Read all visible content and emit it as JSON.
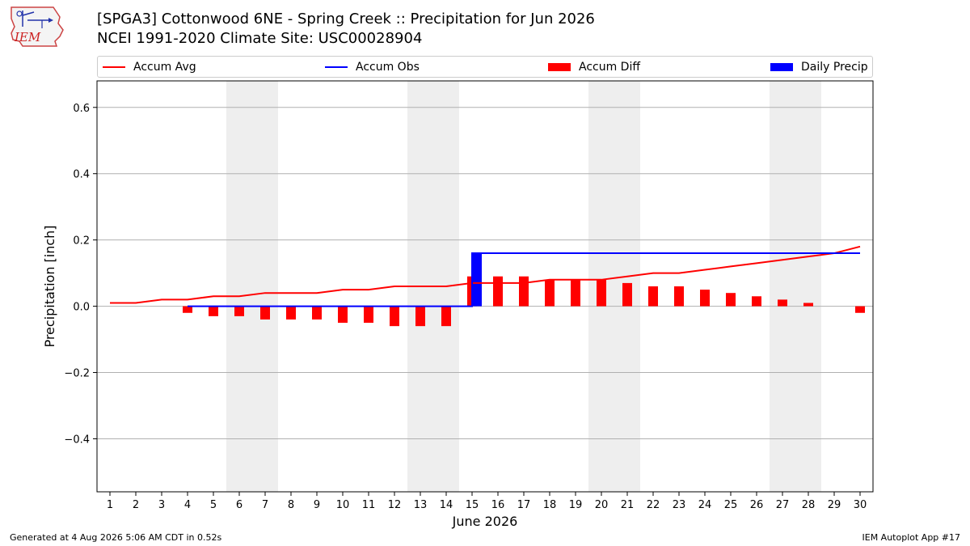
{
  "header": {
    "title_line1": "[SPGA3] Cottonwood 6NE - Spring Creek :: Precipitation for Jun 2026",
    "title_line2": "NCEI 1991-2020 Climate Site: USC00028904",
    "logo_text": "IEM"
  },
  "footer": {
    "generated": "Generated at 4 Aug 2026 5:06 AM CDT in 0.52s",
    "app": "IEM Autoplot App #17"
  },
  "colors": {
    "accum_avg": "#ff0000",
    "accum_obs": "#0000ff",
    "accum_diff": "#ff0000",
    "daily_precip": "#0000ff",
    "weekend_shade": "#eeeeee",
    "grid": "#b0b0b0"
  },
  "chart_data": {
    "type": "bar",
    "title": "[SPGA3] Cottonwood 6NE - Spring Creek :: Precipitation for Jun 2026",
    "subtitle": "NCEI 1991-2020 Climate Site: USC00028904",
    "xlabel": "June 2026",
    "ylabel": "Precipitation [inch]",
    "ylim": [
      -0.56,
      0.68
    ],
    "yticks": [
      -0.4,
      -0.2,
      0.0,
      0.2,
      0.4,
      0.6
    ],
    "ytick_labels": [
      "−0.4",
      "−0.2",
      "0.0",
      "0.2",
      "0.4",
      "0.6"
    ],
    "x": [
      1,
      2,
      3,
      4,
      5,
      6,
      7,
      8,
      9,
      10,
      11,
      12,
      13,
      14,
      15,
      16,
      17,
      18,
      19,
      20,
      21,
      22,
      23,
      24,
      25,
      26,
      27,
      28,
      29,
      30
    ],
    "weekend_spans": [
      [
        6,
        7
      ],
      [
        13,
        14
      ],
      [
        20,
        21
      ],
      [
        27,
        28
      ]
    ],
    "grid": true,
    "legend_position": "top",
    "series": [
      {
        "name": "Accum Avg",
        "kind": "line",
        "values": [
          0.01,
          0.01,
          0.02,
          0.02,
          0.03,
          0.03,
          0.04,
          0.04,
          0.04,
          0.05,
          0.05,
          0.06,
          0.06,
          0.06,
          0.07,
          0.07,
          0.07,
          0.08,
          0.08,
          0.08,
          0.09,
          0.1,
          0.1,
          0.11,
          0.12,
          0.13,
          0.14,
          0.15,
          0.16,
          0.18
        ]
      },
      {
        "name": "Accum Obs",
        "kind": "step-line",
        "x": [
          4,
          5,
          6,
          7,
          8,
          9,
          10,
          11,
          12,
          13,
          14,
          15,
          16,
          17,
          18,
          19,
          20,
          21,
          22,
          23,
          24,
          25,
          26,
          27,
          28,
          29,
          30
        ],
        "values": [
          0,
          0,
          0,
          0,
          0,
          0,
          0,
          0,
          0,
          0,
          0,
          0.16,
          0.16,
          0.16,
          0.16,
          0.16,
          0.16,
          0.16,
          0.16,
          0.16,
          0.16,
          0.16,
          0.16,
          0.16,
          0.16,
          0.16,
          0.16
        ]
      },
      {
        "name": "Accum Diff",
        "kind": "bar",
        "x": [
          4,
          5,
          6,
          7,
          8,
          9,
          10,
          11,
          12,
          13,
          14,
          15,
          16,
          17,
          18,
          19,
          20,
          21,
          22,
          23,
          24,
          25,
          26,
          27,
          28,
          30
        ],
        "values": [
          -0.02,
          -0.03,
          -0.03,
          -0.04,
          -0.04,
          -0.04,
          -0.05,
          -0.05,
          -0.06,
          -0.06,
          -0.06,
          0.09,
          0.09,
          0.09,
          0.08,
          0.08,
          0.08,
          0.07,
          0.06,
          0.06,
          0.05,
          0.04,
          0.03,
          0.02,
          0.01,
          -0.02
        ]
      },
      {
        "name": "Daily Precip",
        "kind": "bar",
        "x": [
          15
        ],
        "values": [
          0.16
        ]
      }
    ]
  }
}
